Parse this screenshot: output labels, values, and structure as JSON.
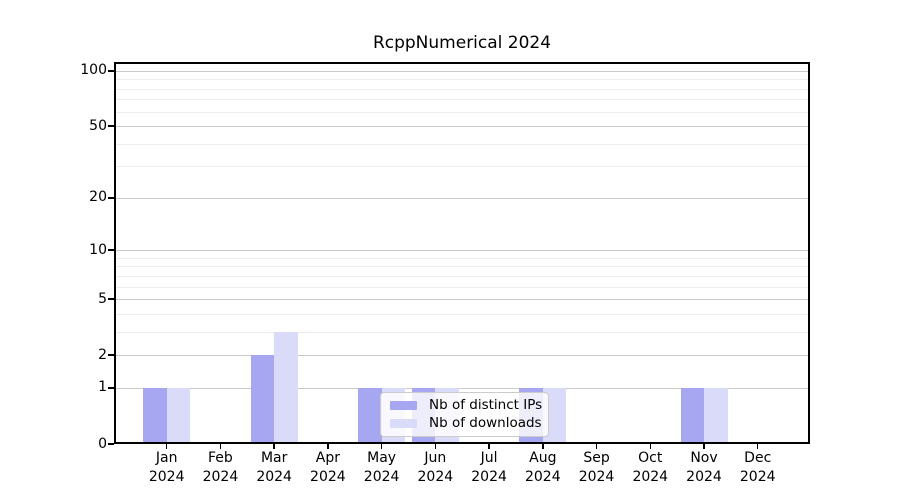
{
  "title": "RcppNumerical 2024",
  "colors": {
    "distinct_ips": "#a6a6f1",
    "downloads": "#dadaf9",
    "grid_major": "#c9c9c9",
    "grid_minor": "#ececec",
    "axis": "#000000",
    "legend_border": "#cccccc"
  },
  "legend": {
    "items": [
      {
        "label": "Nb of distinct IPs",
        "color_key": "distinct_ips"
      },
      {
        "label": "Nb of downloads",
        "color_key": "downloads"
      }
    ],
    "position": "lower center"
  },
  "chart_data": {
    "type": "bar",
    "title": "RcppNumerical 2024",
    "xlabel": "",
    "ylabel": "",
    "categories": [
      "Jan 2024",
      "Feb 2024",
      "Mar 2024",
      "Apr 2024",
      "May 2024",
      "Jun 2024",
      "Jul 2024",
      "Aug 2024",
      "Sep 2024",
      "Oct 2024",
      "Nov 2024",
      "Dec 2024"
    ],
    "series": [
      {
        "name": "Nb of distinct IPs",
        "values": [
          1,
          0,
          2,
          0,
          1,
          1,
          0,
          1,
          0,
          0,
          1,
          0
        ]
      },
      {
        "name": "Nb of downloads",
        "values": [
          1,
          0,
          3,
          0,
          1,
          1,
          0,
          1,
          0,
          0,
          1,
          0
        ]
      }
    ],
    "yscale": "log1p",
    "yticks": [
      0,
      1,
      2,
      5,
      10,
      20,
      50,
      100
    ],
    "minor_yticks": [
      3,
      4,
      6,
      7,
      8,
      9,
      30,
      40,
      60,
      70,
      80,
      90
    ],
    "ylim": [
      0,
      112
    ],
    "grid": true,
    "legend_position": "lower center"
  }
}
